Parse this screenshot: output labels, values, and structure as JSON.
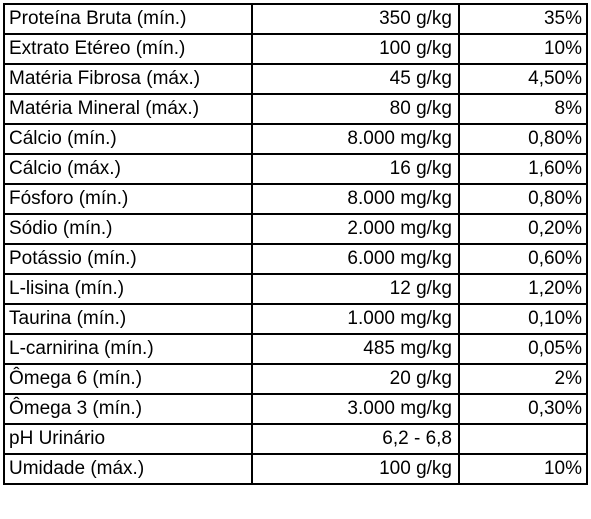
{
  "table": {
    "rows": [
      [
        "Proteína Bruta (mín.)",
        "350 g/kg",
        "35%"
      ],
      [
        "Extrato Etéreo (mín.)",
        "100 g/kg",
        "10%"
      ],
      [
        "Matéria Fibrosa (máx.)",
        "45 g/kg",
        "4,50%"
      ],
      [
        "Matéria Mineral (máx.)",
        "80 g/kg",
        "8%"
      ],
      [
        "Cálcio (mín.)",
        "8.000 mg/kg",
        "0,80%"
      ],
      [
        "Cálcio (máx.)",
        "16 g/kg",
        "1,60%"
      ],
      [
        "Fósforo (mín.)",
        "8.000 mg/kg",
        "0,80%"
      ],
      [
        "Sódio (mín.)",
        "2.000 mg/kg",
        "0,20%"
      ],
      [
        "Potássio (mín.)",
        "6.000 mg/kg",
        "0,60%"
      ],
      [
        "L-lisina (mín.)",
        "12 g/kg",
        "1,20%"
      ],
      [
        "Taurina (mín.)",
        "1.000 mg/kg",
        "0,10%"
      ],
      [
        "L-carnirina (mín.)",
        "485 mg/kg",
        "0,05%"
      ],
      [
        "Ômega 6 (mín.)",
        "20 g/kg",
        "2%"
      ],
      [
        "Ômega 3 (mín.)",
        "3.000 mg/kg",
        "0,30%"
      ],
      [
        "pH Urinário",
        "6,2 - 6,8"
      ],
      [
        "Umidade (máx.)",
        "100 g/kg",
        "10%"
      ]
    ]
  }
}
